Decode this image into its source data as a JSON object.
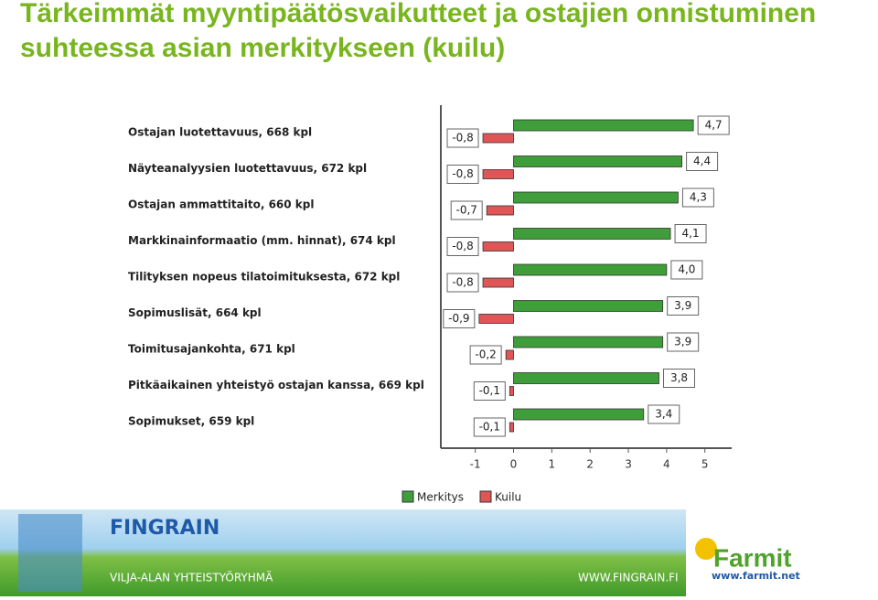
{
  "title": "Tärkeimmät myyntipäätösvaikutteet ja ostajien onnistuminen suhteessa asian merkitykseen (kuilu)",
  "chart_data": {
    "type": "hbar",
    "categories": [
      "Ostajan luotettavuus, 668 kpl",
      "Näyteanalyysien luotettavuus, 672 kpl",
      "Ostajan ammattitaito, 660 kpl",
      "Markkinainformaatio (mm. hinnat), 674 kpl",
      "Tilityksen nopeus tilatoimituksesta, 672 kpl",
      "Sopimuslisät, 664 kpl",
      "Toimitusajankohta, 671 kpl",
      "Pitkäaikainen yhteistyö ostajan kanssa, 669 kpl",
      "Sopimukset, 659 kpl"
    ],
    "series": [
      {
        "name": "Merkitys",
        "color": "#3f9e3a",
        "values": [
          4.7,
          4.4,
          4.3,
          4.1,
          4.0,
          3.9,
          3.9,
          3.8,
          3.4
        ],
        "value_labels": [
          "4,7",
          "4,4",
          "4,3",
          "4,1",
          "4,0",
          "3,9",
          "3,9",
          "3,8",
          "3,4"
        ]
      },
      {
        "name": "Kuilu",
        "color": "#e05555",
        "values": [
          -0.8,
          -0.8,
          -0.7,
          -0.8,
          -0.8,
          -0.9,
          -0.2,
          -0.1,
          -0.1
        ],
        "value_labels": [
          "-0,8",
          "-0,8",
          "-0,7",
          "-0,8",
          "-0,8",
          "-0,9",
          "-0,2",
          "-0,1",
          "-0,1"
        ]
      }
    ],
    "xlim": [
      -1.9,
      5.7
    ],
    "xticks": [
      -1,
      0,
      1,
      2,
      3,
      4,
      5
    ],
    "legend": "bottom"
  },
  "footer": {
    "brand": "FINGRAIN",
    "tagline": "VILJA-ALAN YHTEISTYÖRYHMÄ",
    "url": "WWW.FINGRAIN.FI",
    "logo": "Farmit",
    "logo_url": "www.farmit.net"
  }
}
